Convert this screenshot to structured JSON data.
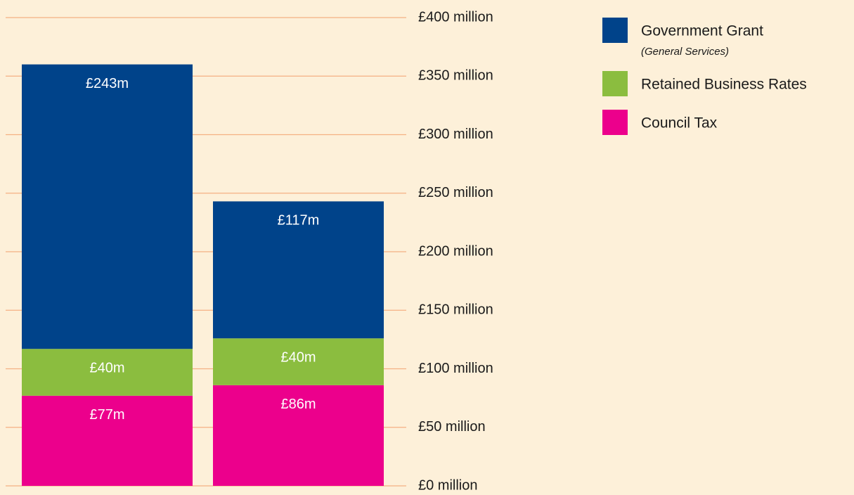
{
  "chart_data": {
    "type": "stacked_bar",
    "categories": [
      null,
      null
    ],
    "series": [
      {
        "name": "Government Grant",
        "subtitle": "(General Services)",
        "color": "#00438a",
        "values": [
          243,
          117
        ],
        "value_labels": [
          "£243m",
          "£117m"
        ]
      },
      {
        "name": "Retained Business Rates",
        "color": "#8bbd3f",
        "values": [
          40,
          40
        ],
        "value_labels": [
          "£40m",
          "£40m"
        ]
      },
      {
        "name": "Council Tax",
        "color": "#ec008c",
        "values": [
          77,
          86
        ],
        "value_labels": [
          "£77m",
          "£86m"
        ]
      }
    ],
    "ylim": [
      0,
      400
    ],
    "yticks": [
      {
        "value": 0,
        "label": "£0 million"
      },
      {
        "value": 50,
        "label": "£50 million"
      },
      {
        "value": 100,
        "label": "£100 million"
      },
      {
        "value": 150,
        "label": "£150 million"
      },
      {
        "value": 200,
        "label": "£200 million"
      },
      {
        "value": 250,
        "label": "£250 million"
      },
      {
        "value": 300,
        "label": "£300 million"
      },
      {
        "value": 350,
        "label": "£350 million"
      },
      {
        "value": 400,
        "label": "£400 million"
      }
    ],
    "grid": true
  }
}
